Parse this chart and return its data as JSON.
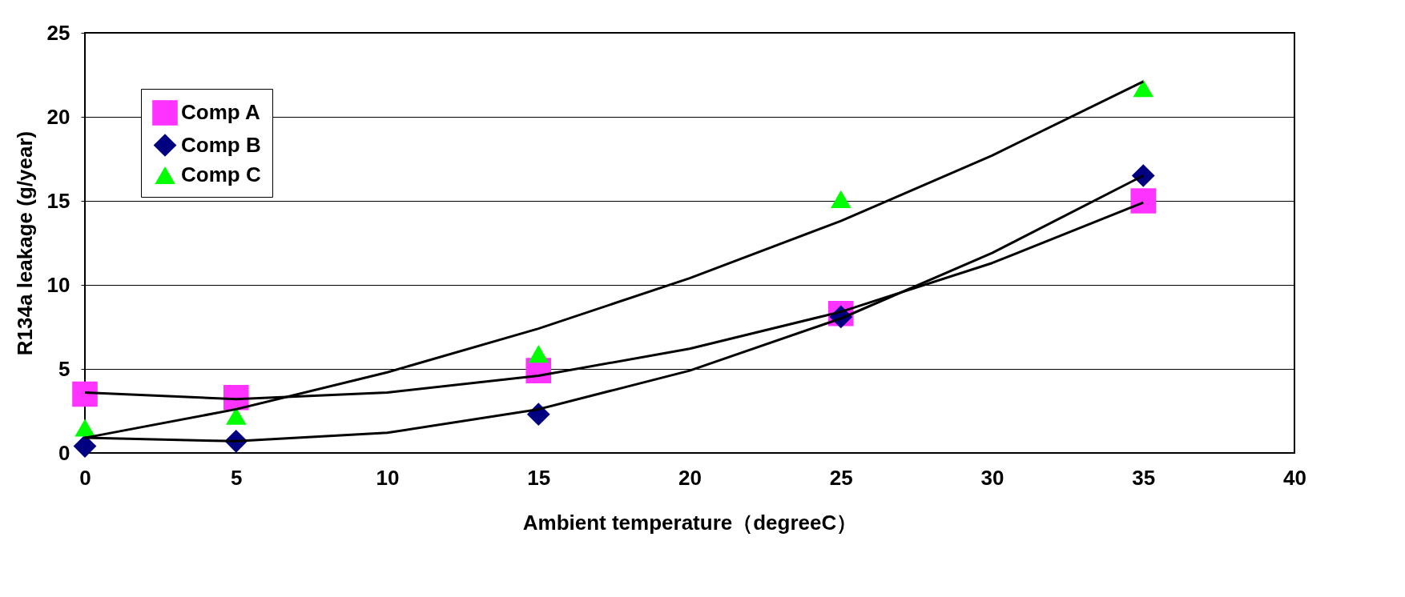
{
  "chart_data": {
    "type": "scatter",
    "xlabel": "Ambient temperature（degreeC）",
    "ylabel": "R134a leakage (g/year)",
    "xlim": [
      0,
      40
    ],
    "xticks": [
      0,
      5,
      10,
      15,
      20,
      25,
      30,
      35,
      40
    ],
    "ylim": [
      0,
      25
    ],
    "yticks": [
      0,
      5,
      10,
      15,
      20,
      25
    ],
    "grid": "y",
    "legend": "top left",
    "series": [
      {
        "name": "Comp A",
        "color": "#ff33ff",
        "marker": "square",
        "x": [
          0,
          5,
          15,
          25,
          35
        ],
        "values": [
          3.5,
          3.3,
          4.9,
          8.3,
          15.0
        ]
      },
      {
        "name": "Comp B",
        "color": "#000080",
        "marker": "diamond",
        "x": [
          0,
          5,
          15,
          25,
          35
        ],
        "values": [
          0.4,
          0.7,
          2.3,
          8.1,
          16.5
        ]
      },
      {
        "name": "Comp C",
        "color": "#00ff00",
        "marker": "triangle",
        "x": [
          0,
          5,
          15,
          25,
          35
        ],
        "values": [
          1.5,
          2.2,
          5.9,
          15.1,
          21.7
        ]
      },
      {
        "type": "line",
        "color": "#000000",
        "x": [
          0,
          5,
          10,
          15,
          20,
          25,
          30,
          35
        ],
        "values": [
          3.6,
          3.2,
          3.6,
          4.6,
          6.2,
          8.4,
          11.3,
          14.9
        ]
      },
      {
        "type": "line",
        "color": "#000000",
        "x": [
          0,
          5,
          10,
          15,
          20,
          25,
          30,
          35
        ],
        "values": [
          0.9,
          0.7,
          1.2,
          2.6,
          4.9,
          8.0,
          11.9,
          16.5
        ]
      },
      {
        "type": "line",
        "color": "#000000",
        "x": [
          0,
          5,
          10,
          15,
          20,
          25,
          30,
          35
        ],
        "values": [
          0.9,
          2.6,
          4.8,
          7.4,
          10.4,
          13.8,
          17.7,
          22.1
        ]
      }
    ]
  }
}
